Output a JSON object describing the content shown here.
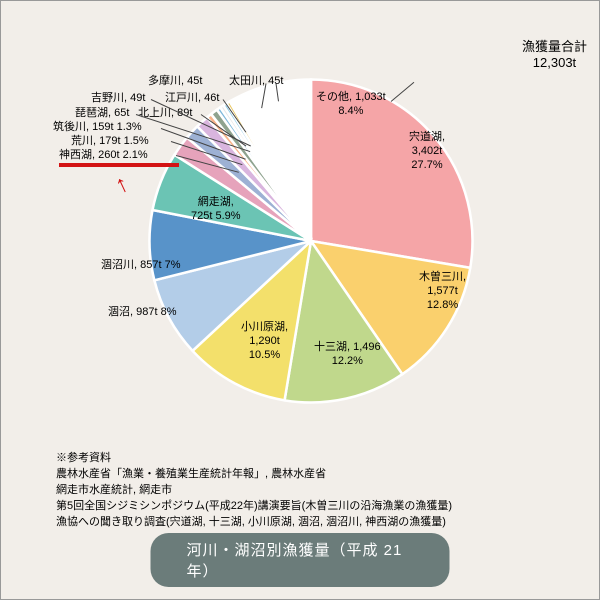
{
  "chart": {
    "type": "pie",
    "background_color": "#f2eee9",
    "stroke_color": "#ffffff",
    "stroke_width": 1.5,
    "slices": [
      {
        "name": "宍道湖",
        "value_t": 3402,
        "percent": 27.7,
        "color": "#f5a5a7",
        "label": "宍道湖,\n3,402t\n27.7%"
      },
      {
        "name": "木曽三川",
        "value_t": 1577,
        "percent": 12.8,
        "color": "#fad06d",
        "label": "木曽三川,\n1,577t\n12.8%"
      },
      {
        "name": "十三湖",
        "value_t": 1496,
        "percent": 12.2,
        "color": "#c0d88c",
        "label": "十三湖, 1,496\n12.2%"
      },
      {
        "name": "小川原湖",
        "value_t": 1290,
        "percent": 10.5,
        "color": "#f3e06b",
        "label": "小川原湖,\n1,290t\n10.5%"
      },
      {
        "name": "涸沼",
        "value_t": 987,
        "percent": 8.0,
        "color": "#b3cde8",
        "label": "涸沼, 987t 8%"
      },
      {
        "name": "涸沼川",
        "value_t": 857,
        "percent": 7.0,
        "color": "#5893c9",
        "label": "涸沼川, 857t 7%"
      },
      {
        "name": "網走湖",
        "value_t": 725,
        "percent": 5.9,
        "color": "#6bc4b4",
        "label": "網走湖,\n725t 5.9%"
      },
      {
        "name": "神西湖",
        "value_t": 260,
        "percent": 2.1,
        "color": "#e6a3bb",
        "label": "神西湖, 260t 2.1%"
      },
      {
        "name": "荒川",
        "value_t": 179,
        "percent": 1.5,
        "color": "#9db1d4",
        "label": "荒川, 179t 1.5%"
      },
      {
        "name": "筑後川",
        "value_t": 159,
        "percent": 1.3,
        "color": "#d9b5de",
        "label": "筑後川, 159t 1.3%"
      },
      {
        "name": "琵琶湖",
        "value_t": 65,
        "percent": 0.53,
        "color": "#f8b389",
        "label": "琵琶湖, 65t"
      },
      {
        "name": "北上川",
        "value_t": 89,
        "percent": 0.72,
        "color": "#8fa38f",
        "label": "北上川, 89t"
      },
      {
        "name": "吉野川",
        "value_t": 49,
        "percent": 0.4,
        "color": "#7fb8da",
        "label": "吉野川, 49t"
      },
      {
        "name": "江戸川",
        "value_t": 46,
        "percent": 0.37,
        "color": "#e6e6e6",
        "label": "江戸川, 46t"
      },
      {
        "name": "多摩川",
        "value_t": 45,
        "percent": 0.37,
        "color": "#8fcbe8",
        "label": "多摩川, 45t"
      },
      {
        "name": "太田川",
        "value_t": 45,
        "percent": 0.37,
        "color": "#e8c660",
        "label": "太田川, 45t"
      },
      {
        "name": "その他",
        "value_t": 1033,
        "percent": 8.4,
        "color": "#ffffff",
        "label": "その他, 1,033t\n8.4%"
      }
    ]
  },
  "total": {
    "label": "漁獲量合計",
    "value": "12,303t"
  },
  "references": {
    "heading": "※参考資料",
    "lines": [
      "農林水産省「漁業・養殖業生産統計年報」, 農林水産省",
      "網走市水産統計, 網走市",
      "第5回全国シジミシンポジウム(平成22年)講演要旨(木曽三川の沿海漁業の漁獲量)",
      "漁協への聞き取り調査(宍道湖, 十三湖, 小川原湖, 涸沼, 涸沼川, 神西湖の漁獲量)"
    ]
  },
  "title": "河川・湖沼別漁獲量（平成 21 年）",
  "annotation": {
    "arrow_color": "#d31314",
    "underline_color": "#d31314"
  }
}
